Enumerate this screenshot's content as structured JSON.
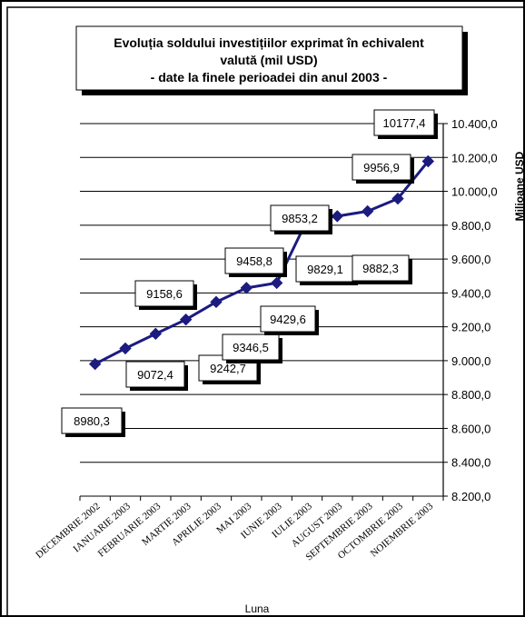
{
  "chart_data": {
    "type": "line",
    "title_lines": [
      "Evoluția soldului investițiilor exprimat în echivalent",
      "valută (mil USD)",
      "- date la finele perioadei din anul 2003 -"
    ],
    "categories": [
      "DECEMBRIE 2002",
      "IANUARIE 2003",
      "FEBRUARIE 2003",
      "MARTIE 2003",
      "APRILIE 2003",
      "MAI 2003",
      "IUNIE 2003",
      "IULIE 2003",
      "AUGUST 2003",
      "SEPTEMBRIE 2003",
      "OCTOMBRIE 2003",
      "NOIEMBRIE 2003"
    ],
    "values": [
      8980.3,
      9072.4,
      9158.6,
      9242.7,
      9346.5,
      9429.6,
      9458.8,
      9829.1,
      9853.2,
      9882.3,
      9956.9,
      10177.4
    ],
    "value_labels": [
      "8980,3",
      "9072,4",
      "9158,6",
      "9242,7",
      "9346,5",
      "9429,6",
      "9458,8",
      "9829,1",
      "9853,2",
      "9882,3",
      "9956,9",
      "10177,4"
    ],
    "y_ticks": [
      8200,
      8400,
      8600,
      8800,
      9000,
      9200,
      9400,
      9600,
      9800,
      10000,
      10200,
      10400
    ],
    "y_tick_labels": [
      "8.200,0",
      "8.400,0",
      "8.600,0",
      "8.800,0",
      "9.000,0",
      "9.200,0",
      "9.400,0",
      "9.600,0",
      "9.800,0",
      "10.000,0",
      "10.200,0",
      "10.400,0"
    ],
    "ylim": [
      8200,
      10400
    ],
    "ylabel": "Milioane USD",
    "xlabel": "Luna",
    "grid": true,
    "legend": "none",
    "line_color": "#1b1b80",
    "marker_color": "#1b1b80"
  }
}
